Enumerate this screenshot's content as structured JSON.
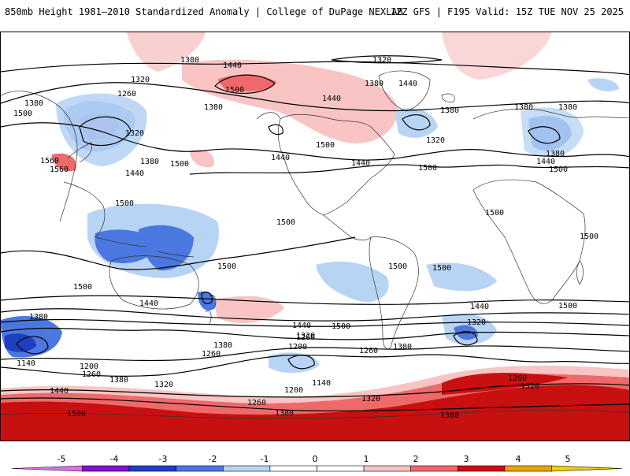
{
  "header": {
    "left_title": "850mb Height 1981–2010 Standardized Anomaly | College of DuPage NEXLAB",
    "right_title": "12Z GFS | F195 Valid: 15Z TUE NOV 25 2025"
  },
  "colorbar": {
    "ticks": [
      "-5",
      "-4",
      "-3",
      "-2",
      "-1",
      "0",
      "1",
      "2",
      "3",
      "4",
      "5"
    ],
    "colors": [
      "#e070e0",
      "#8a10c8",
      "#1f3fbf",
      "#4a78e0",
      "#b8d4f4",
      "#ffffff",
      "#ffffff",
      "#f8c4c4",
      "#ee6a6a",
      "#c81010",
      "#f0a000",
      "#f0d000"
    ]
  },
  "contour_labels": [
    {
      "id": "c1",
      "text": "1380"
    },
    {
      "id": "c2",
      "text": "1440"
    },
    {
      "id": "c3",
      "text": "1320"
    },
    {
      "id": "c4",
      "text": "1320"
    },
    {
      "id": "c5",
      "text": "1260"
    },
    {
      "id": "c6",
      "text": "1380"
    },
    {
      "id": "c7",
      "text": "1500"
    },
    {
      "id": "c8",
      "text": "1500"
    },
    {
      "id": "c9",
      "text": "1380"
    },
    {
      "id": "c10",
      "text": "1440"
    },
    {
      "id": "c11",
      "text": "1380"
    },
    {
      "id": "c12",
      "text": "1440"
    },
    {
      "id": "c13",
      "text": "1380"
    },
    {
      "id": "c14",
      "text": "1380"
    },
    {
      "id": "c15",
      "text": "1320"
    },
    {
      "id": "c16",
      "text": "1320"
    },
    {
      "id": "c17",
      "text": "1560"
    },
    {
      "id": "c18",
      "text": "1380"
    },
    {
      "id": "c19",
      "text": "1440"
    },
    {
      "id": "c20",
      "text": "1500"
    },
    {
      "id": "c21",
      "text": "1440"
    },
    {
      "id": "c22",
      "text": "1500"
    },
    {
      "id": "c23",
      "text": "1440"
    },
    {
      "id": "c24",
      "text": "1500"
    },
    {
      "id": "c25",
      "text": "1380"
    },
    {
      "id": "c26",
      "text": "1380"
    },
    {
      "id": "c27",
      "text": "1440"
    },
    {
      "id": "c28",
      "text": "1500"
    },
    {
      "id": "c29",
      "text": "1560"
    },
    {
      "id": "c30",
      "text": "1500"
    },
    {
      "id": "c31",
      "text": "1500"
    },
    {
      "id": "c32",
      "text": "1500"
    },
    {
      "id": "c33",
      "text": "1500"
    },
    {
      "id": "c34",
      "text": "1500"
    },
    {
      "id": "c35",
      "text": "1500"
    },
    {
      "id": "c36",
      "text": "1500"
    },
    {
      "id": "c37",
      "text": "1500"
    },
    {
      "id": "c38",
      "text": "1440"
    },
    {
      "id": "c39",
      "text": "1500"
    },
    {
      "id": "c40",
      "text": "1380"
    },
    {
      "id": "c41",
      "text": "1440"
    },
    {
      "id": "c42",
      "text": "1500"
    },
    {
      "id": "c43",
      "text": "1320"
    },
    {
      "id": "c44",
      "text": "1440"
    },
    {
      "id": "c45",
      "text": "1380"
    },
    {
      "id": "c46",
      "text": "1260"
    },
    {
      "id": "c47",
      "text": "1380"
    },
    {
      "id": "c48",
      "text": "1320"
    },
    {
      "id": "c49",
      "text": "1200"
    },
    {
      "id": "c50",
      "text": "1260"
    },
    {
      "id": "c51",
      "text": "1260"
    },
    {
      "id": "c52",
      "text": "1140"
    },
    {
      "id": "c53",
      "text": "1200"
    },
    {
      "id": "c54",
      "text": "1260"
    },
    {
      "id": "c55",
      "text": "1380"
    },
    {
      "id": "c56",
      "text": "1320"
    },
    {
      "id": "c57",
      "text": "1140"
    },
    {
      "id": "c58",
      "text": "1200"
    },
    {
      "id": "c59",
      "text": "1440"
    },
    {
      "id": "c60",
      "text": "1500"
    },
    {
      "id": "c61",
      "text": "1260"
    },
    {
      "id": "c62",
      "text": "1320"
    },
    {
      "id": "c63",
      "text": "1380"
    },
    {
      "id": "c64",
      "text": "1380"
    },
    {
      "id": "c65",
      "text": "1260"
    },
    {
      "id": "c66",
      "text": "1320"
    }
  ]
}
